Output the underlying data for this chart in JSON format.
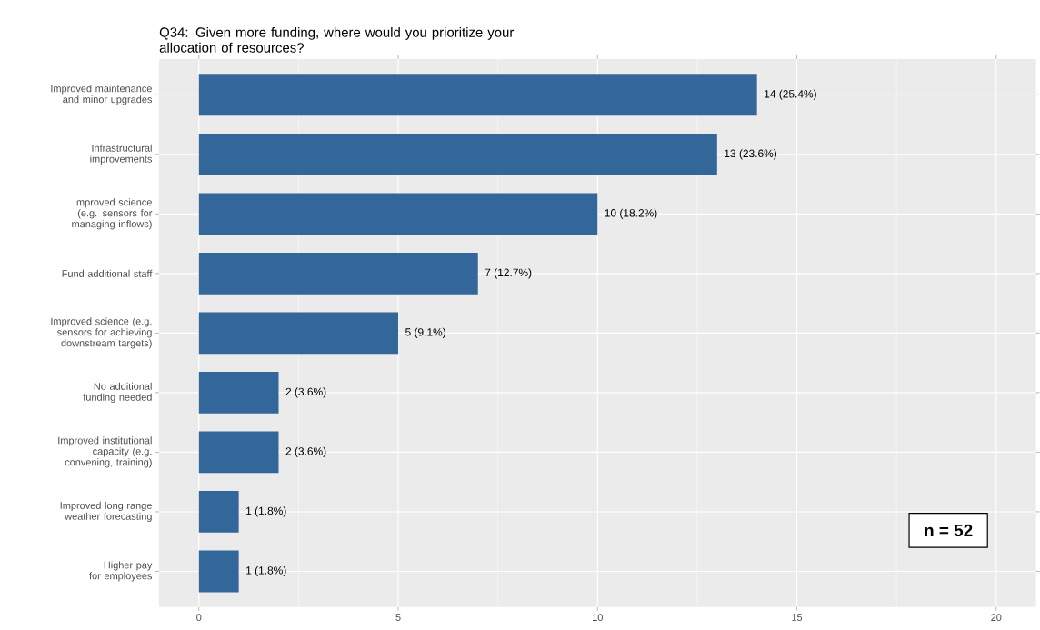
{
  "chart_data": {
    "type": "bar",
    "orientation": "horizontal",
    "title": "Q34: Given more funding, where would you prioritize your allocation of resources?",
    "categories": [
      "Improved maintenance and minor upgrades",
      "Infrastructural improvements",
      "Improved science (e.g. sensors for managing inflows)",
      "Fund additional staff",
      "Improved science (e.g. sensors for achieving downstream targets)",
      "No additional funding needed",
      "Improved institutional capacity (e.g. convening, training)",
      "Improved long range weather forecasting",
      "Higher pay for employees"
    ],
    "values": [
      14,
      13,
      10,
      7,
      5,
      2,
      2,
      1,
      1
    ],
    "value_labels": [
      "14 (25.4%)",
      "13 (23.6%)",
      "10 (18.2%)",
      "7 (12.7%)",
      "5 (9.1%)",
      "2 (3.6%)",
      "2 (3.6%)",
      "1 (1.8%)",
      "1 (1.8%)"
    ],
    "color": "#336699",
    "xlim": [
      -1,
      21
    ],
    "xticks": [
      0,
      5,
      10,
      15,
      20
    ],
    "grid": true,
    "annotations": [
      "n = 52"
    ]
  }
}
